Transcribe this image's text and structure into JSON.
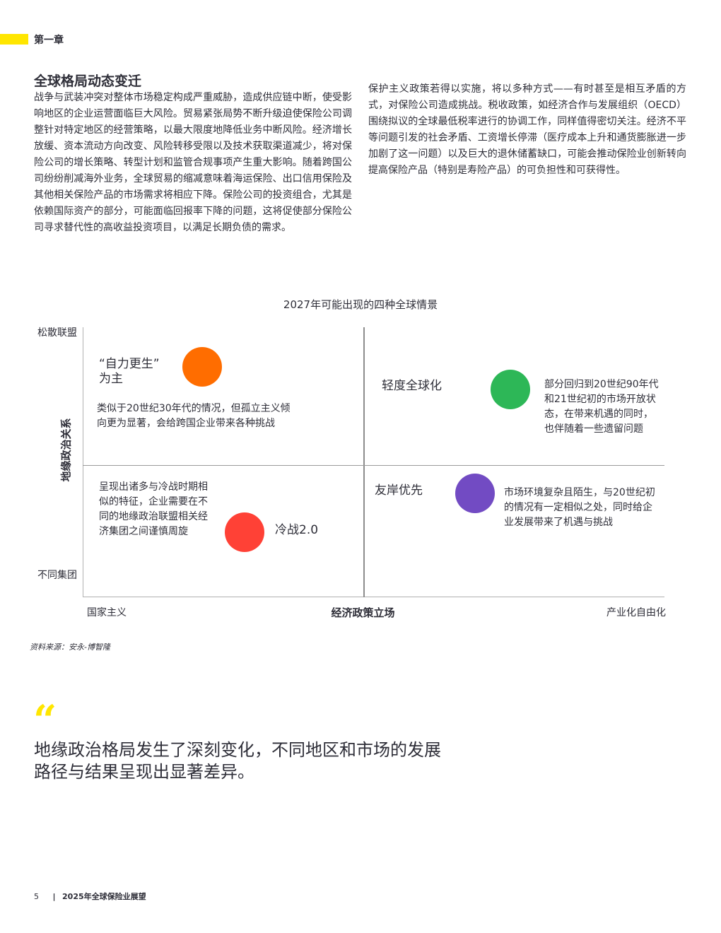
{
  "chapter": "第一章",
  "section": {
    "title": "全球格局动态变迁",
    "paragraph_left": "战争与武装冲突对整体市场稳定构成严重威胁，造成供应链中断，使受影响地区的企业运营面临巨大风险。贸易紧张局势不断升级迫使保险公司调整针对特定地区的经营策略，以最大限度地降低业务中断风险。经济增长放缓、资本流动方向改变、风险转移受限以及技术获取渠道减少，将对保险公司的增长策略、转型计划和监管合规事项产生重大影响。随着跨国公司纷纷削减海外业务，全球贸易的缩减意味着海运保险、出口信用保险及其他相关保险产品的市场需求将相应下降。保险公司的投资组合，尤其是依赖国际资产的部分，可能面临回报率下降的问题，这将促使部分保险公司寻求替代性的高收益投资项目，以满足长期负债的需求。",
    "paragraph_right": "保护主义政策若得以实施，将以多种方式——有时甚至是相互矛盾的方式，对保险公司造成挑战。税收政策，如经济合作与发展组织（OECD）围绕拟议的全球最低税率进行的协调工作，同样值得密切关注。经济不平等问题引发的社会矛盾、工资增长停滞（医疗成本上升和通货膨胀进一步加剧了这一问题）以及巨大的退休储蓄缺口，可能会推动保险业创新转向提高保险产品（特别是寿险产品）的可负担性和可获得性。"
  },
  "chart_data": {
    "type": "quadrant",
    "title": "2027年可能出现的四种全球情景",
    "y_axis": {
      "label": "地缘政治关系",
      "top": "松散联盟",
      "bottom": "不同集团"
    },
    "x_axis": {
      "label": "经济政策立场",
      "left": "国家主义",
      "right": "产业化自由化"
    },
    "quadrants": [
      {
        "id": "top-left",
        "title_line1": "“自力更生”",
        "title_line2": "为主",
        "color": "#ff6d00",
        "description": "类似于20世纪30年代的情况，但孤立主义倾向更为显著，会给跨国企业带来各种挑战"
      },
      {
        "id": "top-right",
        "title_line1": "轻度全球化",
        "title_line2": "",
        "color": "#2db757",
        "description": "部分回归到20世纪90年代和21世纪初的市场开放状态，在带来机遇的同时，也伴随着一些遗留问题"
      },
      {
        "id": "bottom-left",
        "title_line1": "冷战2.0",
        "title_line2": "",
        "color": "#ff4136",
        "description": "呈现出诸多与冷战时期相似的特征，企业需要在不同的地缘政治联盟相关经济集团之间谨慎周旋"
      },
      {
        "id": "bottom-right",
        "title_line1": "友岸优先",
        "title_line2": "",
        "color": "#724bc3",
        "description": "市场环境复杂且陌生，与20世纪初的情况有一定相似之处，同时给企业发展带来了机遇与挑战"
      }
    ]
  },
  "source": "资料来源：安永-博智隆",
  "quote": {
    "mark": "“",
    "text": "地缘政治格局发生了深刻变化，不同地区和市场的发展路径与结果呈现出显著差异。"
  },
  "footer": {
    "page_number": "5",
    "separator": "|",
    "document_title": "2025年全球保险业展望"
  },
  "colors": {
    "accent_yellow": "#ffe600"
  }
}
